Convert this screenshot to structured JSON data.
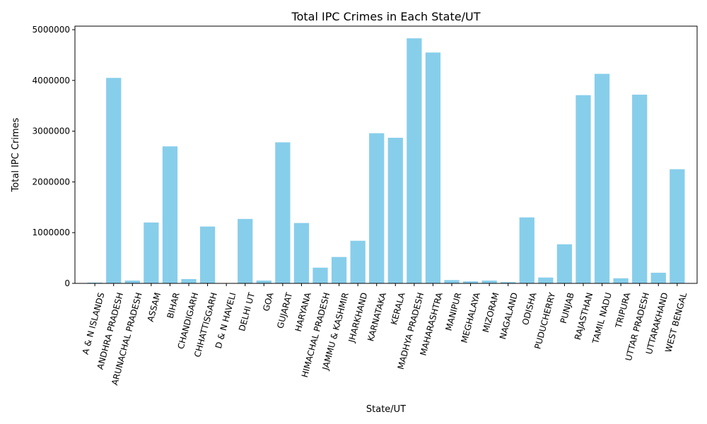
{
  "chart_data": {
    "type": "bar",
    "title": "Total IPC Crimes in Each State/UT",
    "xlabel": "State/UT",
    "ylabel": "Total IPC Crimes",
    "ylim": [
      0,
      5070000
    ],
    "yticks": [
      0,
      1000000,
      2000000,
      3000000,
      4000000,
      5000000
    ],
    "ytick_labels": [
      "0",
      "1000000",
      "2000000",
      "3000000",
      "4000000",
      "5000000"
    ],
    "bar_color": "#87CEEB",
    "grid": false,
    "categories": [
      "A & N ISLANDS",
      "ANDHRA PRADESH",
      "ARUNACHAL PRADESH",
      "ASSAM",
      "BIHAR",
      "CHANDIGARH",
      "CHHATTISGARH",
      "D & N HAVELI",
      "DELHI UT",
      "GOA",
      "GUJARAT",
      "HARYANA",
      "HIMACHAL PRADESH",
      "JAMMU & KASHMIR",
      "JHARKHAND",
      "KARNATAKA",
      "KERALA",
      "MADHYA PRADESH",
      "MAHARASHTRA",
      "MANIPUR",
      "MEGHALAYA",
      "MIZORAM",
      "NAGALAND",
      "ODISHA",
      "PUDUCHERRY",
      "PUNJAB",
      "RAJASTHAN",
      "TAMIL NADU",
      "TRIPURA",
      "UTTAR PRADESH",
      "UTTARAKHAND",
      "WEST BENGAL"
    ],
    "values": [
      15000,
      4050000,
      55000,
      1200000,
      2700000,
      85000,
      1120000,
      5000,
      1270000,
      55000,
      2780000,
      1190000,
      310000,
      520000,
      840000,
      2960000,
      2870000,
      4830000,
      4550000,
      65000,
      40000,
      55000,
      25000,
      1300000,
      115000,
      770000,
      3710000,
      4130000,
      100000,
      3720000,
      210000,
      2250000
    ]
  }
}
